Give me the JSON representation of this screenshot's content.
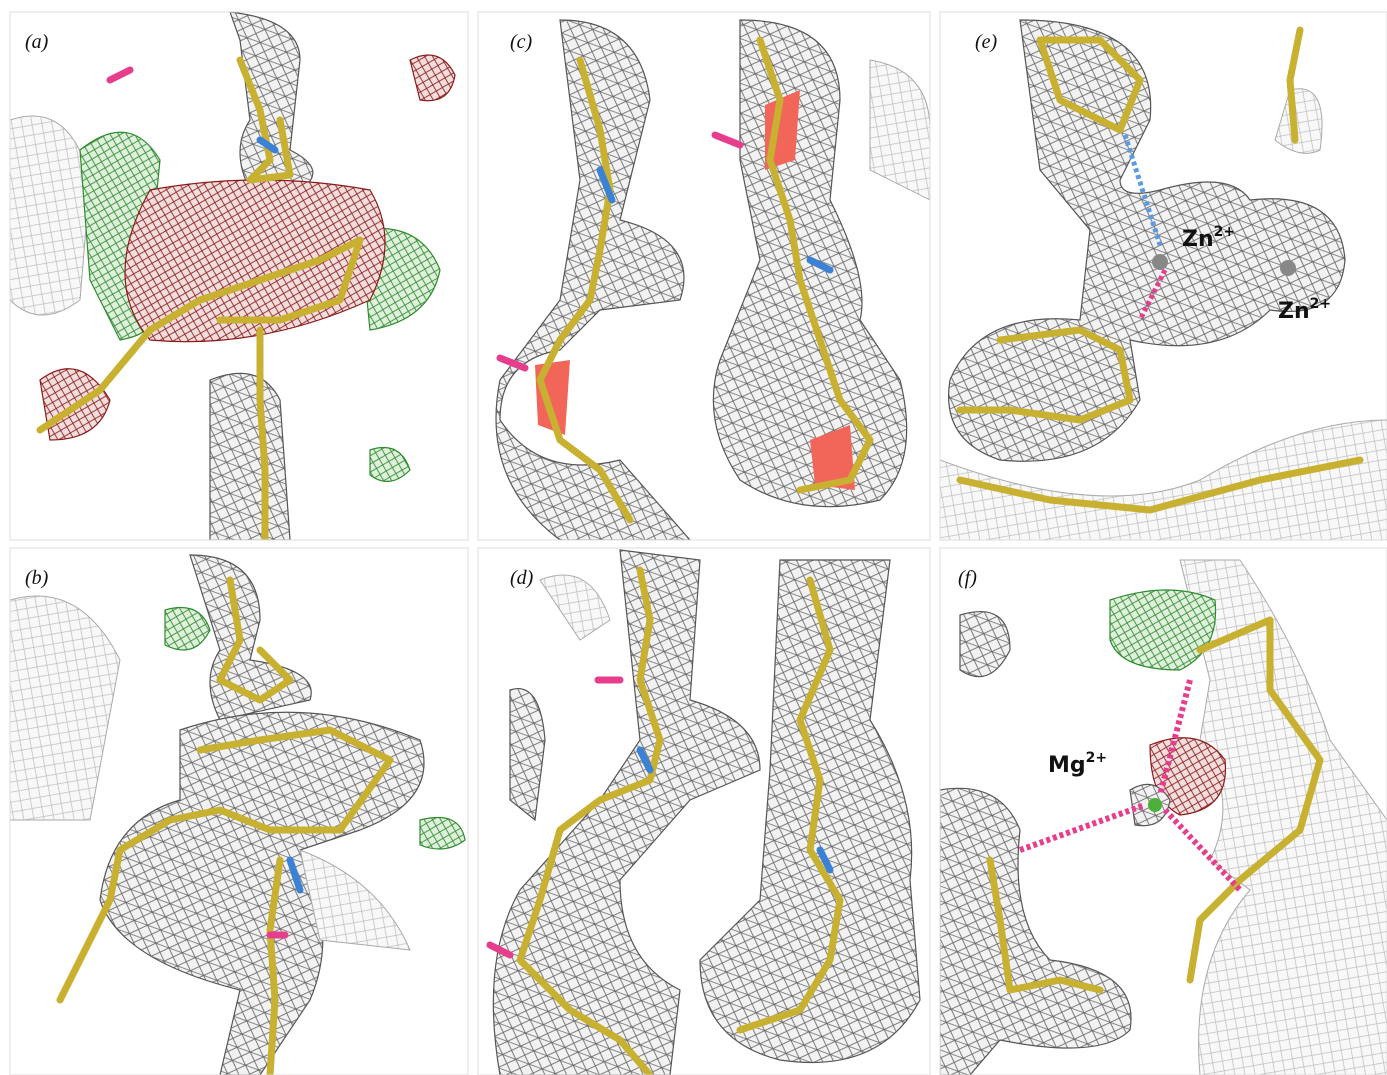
{
  "panels": [
    {
      "label": "(a)"
    },
    {
      "label": "(b)"
    },
    {
      "label": "(c)"
    },
    {
      "label": "(d)"
    },
    {
      "label": "(e)"
    },
    {
      "label": "(f)"
    }
  ],
  "annotations": [
    {
      "ion": "Zn",
      "charge": "2+"
    },
    {
      "ion": "Zn",
      "charge": "2+"
    },
    {
      "ion": "Mg",
      "charge": "2+"
    }
  ]
}
